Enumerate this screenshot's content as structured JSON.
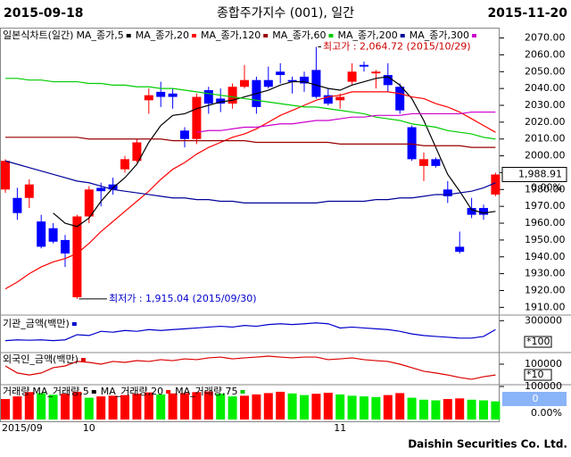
{
  "header": {
    "start_date": "2015-09-18",
    "title": "종합주가지수 (001), 일간",
    "end_date": "2015-11-20"
  },
  "footer": "Daishin Securities Co. Ltd.",
  "chart_data": [
    {
      "type": "candlestick",
      "title": "일본식차트(일간)",
      "categories": [
        "2015/09",
        null,
        null,
        null,
        null,
        null,
        null,
        "10",
        null,
        null,
        null,
        null,
        null,
        null,
        null,
        null,
        null,
        null,
        null,
        null,
        null,
        null,
        null,
        null,
        null,
        null,
        null,
        null,
        "11",
        null,
        null,
        null,
        null,
        null,
        null,
        null,
        null,
        null,
        null,
        null,
        null,
        null
      ],
      "open": [
        1980,
        1975,
        1975,
        1961,
        1957,
        1950,
        1916,
        1964,
        1981,
        1983,
        1992,
        1997,
        2033,
        2038,
        2037,
        2015,
        2010,
        2039,
        2034,
        2031,
        2041,
        2045,
        2045,
        2050,
        2045,
        2047,
        2051,
        2036,
        2033,
        2044,
        2054,
        2049,
        2048,
        2041,
        2017,
        1994,
        1998,
        1980,
        1946,
        1969,
        1969,
        1977
      ],
      "high": [
        1998,
        1981,
        1986,
        1965,
        1960,
        1953,
        1965,
        1982,
        1984,
        1987,
        2000,
        2010,
        2040,
        2044,
        2040,
        2017,
        2037,
        2041,
        2040,
        2043,
        2054,
        2047,
        2053,
        2055,
        2047,
        2050,
        2064.72,
        2040,
        2037,
        2055,
        2056,
        2051,
        2055,
        2043,
        2018,
        2002,
        1999,
        1985,
        1955,
        1975,
        1971,
        1990
      ],
      "low": [
        1978,
        1962,
        1969,
        1945,
        1948,
        1934,
        1915.04,
        1960,
        1970,
        1977,
        1990,
        1996,
        2025,
        2029,
        2028,
        2005,
        2007,
        2025,
        2026,
        2028,
        2040,
        2025,
        2040,
        2043,
        2037,
        2038,
        2034,
        2030,
        2028,
        2042,
        2050,
        2040,
        2038,
        2025,
        1997,
        1985,
        1993,
        1972,
        1942,
        1963,
        1962,
        1976
      ],
      "close": [
        1997,
        1966,
        1983,
        1946,
        1949,
        1942,
        1964,
        1980,
        1979,
        1980,
        1998,
        2008,
        2036,
        2035,
        2035,
        2010,
        2035,
        2031,
        2031,
        2041,
        2045,
        2029,
        2041,
        2048,
        2044,
        2043,
        2035,
        2031,
        2035,
        2050,
        2053,
        2050,
        2042,
        2027,
        1998,
        1998,
        1994,
        1976,
        1943,
        1965,
        1965,
        1988.91
      ],
      "up_color": "#ff0000",
      "down_color": "#0000ff",
      "series": [
        {
          "name": "MA_종가,5",
          "color": "#000000",
          "values": [
            null,
            null,
            null,
            null,
            1966,
            1960,
            1958,
            1963,
            1973,
            1981,
            1987,
            1995,
            2008,
            2018,
            2024,
            2025,
            2028,
            2030,
            2032,
            2033,
            2035,
            2037,
            2039,
            2042,
            2044,
            2044,
            2042,
            2040,
            2039,
            2042,
            2044,
            2046,
            2047,
            2042,
            2034,
            2021,
            2005,
            1989,
            1979,
            1968,
            1966,
            1967
          ]
        },
        {
          "name": "MA_종가,20",
          "color": "#ff0000",
          "values": [
            1921,
            1925,
            1930,
            1934,
            1937,
            1939,
            1942,
            1948,
            1955,
            1961,
            1967,
            1973,
            1979,
            1986,
            1992,
            1996,
            2001,
            2005,
            2008,
            2011,
            2013,
            2016,
            2020,
            2024,
            2027,
            2030,
            2033,
            2035,
            2036,
            2038,
            2038,
            2038,
            2038,
            2037,
            2035,
            2034,
            2031,
            2029,
            2026,
            2022,
            2018,
            2014
          ]
        },
        {
          "name": "MA_종가,120",
          "color": "#990000",
          "values": [
            2011,
            2011,
            2011,
            2011,
            2011,
            2011,
            2011,
            2010,
            2010,
            2010,
            2010,
            2010,
            2010,
            2010,
            2009,
            2009,
            2009,
            2009,
            2009,
            2009,
            2009,
            2008,
            2008,
            2008,
            2008,
            2008,
            2008,
            2008,
            2007,
            2007,
            2007,
            2007,
            2007,
            2007,
            2007,
            2006,
            2006,
            2006,
            2006,
            2005,
            2005,
            2005
          ]
        },
        {
          "name": "MA_종가,60",
          "color": "#00cc00",
          "values": [
            2046,
            2046,
            2045,
            2045,
            2044,
            2044,
            2044,
            2043,
            2043,
            2042,
            2042,
            2041,
            2041,
            2040,
            2040,
            2039,
            2038,
            2037,
            2036,
            2035,
            2034,
            2033,
            2032,
            2031,
            2030,
            2029,
            2029,
            2028,
            2027,
            2026,
            2025,
            2023,
            2022,
            2021,
            2019,
            2018,
            2017,
            2015,
            2014,
            2013,
            2011,
            2010
          ]
        },
        {
          "name": "MA_종가,200",
          "color": "#000099",
          "values": [
            1997,
            1995,
            1993,
            1991,
            1989,
            1987,
            1985,
            1984,
            1982,
            1980,
            1979,
            1978,
            1977,
            1976,
            1975,
            1975,
            1974,
            1974,
            1973,
            1973,
            1972,
            1972,
            1972,
            1972,
            1972,
            1972,
            1972,
            1973,
            1973,
            1973,
            1973,
            1974,
            1974,
            1975,
            1975,
            1976,
            1977,
            1977,
            1978,
            1979,
            1981,
            1984
          ]
        },
        {
          "name": "MA_종가,300",
          "color": "#cc00cc",
          "values": [
            null,
            null,
            null,
            null,
            null,
            null,
            null,
            null,
            null,
            null,
            null,
            null,
            null,
            null,
            null,
            null,
            2014,
            2015,
            2015,
            2016,
            2017,
            2017,
            2018,
            2019,
            2019,
            2020,
            2021,
            2021,
            2022,
            2023,
            2023,
            2024,
            2024,
            2024,
            2025,
            2025,
            2025,
            2025,
            2025,
            2026,
            2026,
            2026
          ]
        }
      ],
      "ylim": [
        1907,
        2074
      ],
      "yticks": [
        {
          "value": 1910,
          "label": "1910.00"
        },
        {
          "value": 1920,
          "label": "1920.00"
        },
        {
          "value": 1930,
          "label": "1930.00"
        },
        {
          "value": 1940,
          "label": "1940.00"
        },
        {
          "value": 1950,
          "label": "1950.00"
        },
        {
          "value": 1960,
          "label": "1960.00"
        },
        {
          "value": 1970,
          "label": "1970.00"
        },
        {
          "value": 1980,
          "label": "1980.00"
        },
        {
          "value": 1990,
          "label": "1990.00"
        },
        {
          "value": 2000,
          "label": "2000.00"
        },
        {
          "value": 2010,
          "label": "2010.00"
        },
        {
          "value": 2020,
          "label": "2020.00"
        },
        {
          "value": 2030,
          "label": "2030.00"
        },
        {
          "value": 2040,
          "label": "2040.00"
        },
        {
          "value": 2050,
          "label": "2050.00"
        },
        {
          "value": 2060,
          "label": "2060.00"
        },
        {
          "value": 2070,
          "label": "2070.00"
        }
      ],
      "price_label": "1,988.91",
      "change_label": "0.00%",
      "annotations": [
        "최고가 : 2,064.72 (2015/10/29)",
        "최저가 : 1,915.04 (2015/09/30)"
      ]
    },
    {
      "type": "line",
      "series": [
        {
          "name": "기관_금액(백만)",
          "color": "#0000cc",
          "values": [
            101000,
            109000,
            105000,
            109000,
            101000,
            109000,
            160000,
            152000,
            194000,
            185000,
            202000,
            194000,
            211000,
            202000,
            211000,
            219000,
            227000,
            236000,
            244000,
            236000,
            252000,
            244000,
            261000,
            269000,
            261000,
            269000,
            278000,
            269000,
            227000,
            236000,
            227000,
            219000,
            211000,
            194000,
            168000,
            152000,
            143000,
            135000,
            126000,
            126000,
            143000,
            211000
          ]
        }
      ],
      "ylim": [
        0,
        320000
      ],
      "yticks": [
        300000
      ],
      "multiplier": "*100"
    },
    {
      "type": "line",
      "series": [
        {
          "name": "외국인_금액(백만)",
          "color": "#dd0000",
          "values": [
            91000,
            55000,
            45000,
            55000,
            82000,
            91000,
            114000,
            109000,
            100000,
            114000,
            109000,
            118000,
            114000,
            123000,
            118000,
            127000,
            123000,
            132000,
            136000,
            127000,
            132000,
            136000,
            141000,
            136000,
            132000,
            136000,
            136000,
            123000,
            127000,
            132000,
            123000,
            118000,
            114000,
            100000,
            82000,
            64000,
            55000,
            45000,
            32000,
            23000,
            36000,
            45000
          ]
        }
      ],
      "ylim": [
        0,
        150000
      ],
      "yticks": [
        100000
      ],
      "multiplier": "*10"
    },
    {
      "type": "bar",
      "series": [
        {
          "name": "거래량",
          "up_color": "#ff0000",
          "down_color": "#00ee00",
          "values": [
            62000,
            70000,
            83000,
            80000,
            75000,
            78000,
            84000,
            66000,
            70000,
            72000,
            74000,
            78000,
            82000,
            76000,
            79000,
            80000,
            83000,
            85000,
            78000,
            70000,
            72000,
            76000,
            80000,
            84000,
            79000,
            74000,
            78000,
            81000,
            76000,
            72000,
            70000,
            68000,
            74000,
            80000,
            66000,
            60000,
            58000,
            62000,
            64000,
            60000,
            58000,
            55000
          ]
        }
      ],
      "legend": [
        {
          "name": "MA_거래량,5",
          "color": "#000000"
        },
        {
          "name": "MA_거래량,20",
          "color": "#ff0000"
        },
        {
          "name": "MA_거래량,75",
          "color": "#00cc00"
        }
      ],
      "ylim": [
        0,
        100000
      ],
      "yticks": [
        100000
      ],
      "last_label": 0,
      "change_label": "0.00%"
    }
  ]
}
